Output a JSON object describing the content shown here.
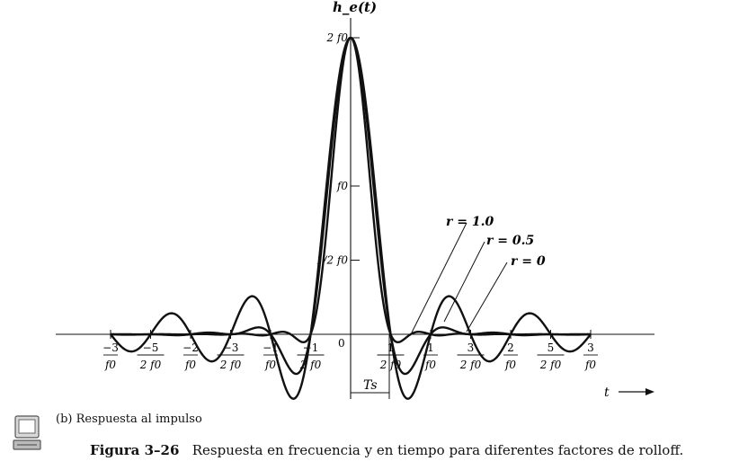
{
  "chart_data": {
    "type": "line",
    "y_axis_label": "h_e(t)",
    "x_axis_label": "t",
    "origin_label": "0",
    "series": [
      {
        "name": "r = 1.0",
        "r": 1.0
      },
      {
        "name": "r = 0.5",
        "r": 0.5
      },
      {
        "name": "r = 0",
        "r": 0
      }
    ],
    "x_ticks": [
      {
        "value": -3,
        "num": "−3",
        "den": "f0"
      },
      {
        "value": -2.5,
        "num": "−5",
        "den": "2 f0"
      },
      {
        "value": -2,
        "num": "−2",
        "den": "f0"
      },
      {
        "value": -1.5,
        "num": "−3",
        "den": "2 f0"
      },
      {
        "value": -1,
        "num": "−1",
        "den": "f0"
      },
      {
        "value": -0.5,
        "num": "−1",
        "den": "2 f0"
      },
      {
        "value": 0.5,
        "num": "1",
        "den": "2 f0"
      },
      {
        "value": 1,
        "num": "1",
        "den": "f0"
      },
      {
        "value": 1.5,
        "num": "3",
        "den": "2 f0"
      },
      {
        "value": 2,
        "num": "2",
        "den": "f0"
      },
      {
        "value": 2.5,
        "num": "5",
        "den": "2 f0"
      },
      {
        "value": 3,
        "num": "3",
        "den": "f0"
      }
    ],
    "y_ticks": [
      {
        "value": 2,
        "label": "2 f0"
      },
      {
        "value": 1,
        "label": "f0"
      },
      {
        "value": 0.5,
        "label": "1/2 f0"
      }
    ],
    "ts_label": "Ts",
    "x_units": "1/f0",
    "y_units": "f0"
  },
  "subcaption": "(b) Respuesta al impulso",
  "caption": {
    "label": "Figura 3–26",
    "text": "Respuesta en frecuencia y en tiempo para diferentes factores de rolloff."
  }
}
